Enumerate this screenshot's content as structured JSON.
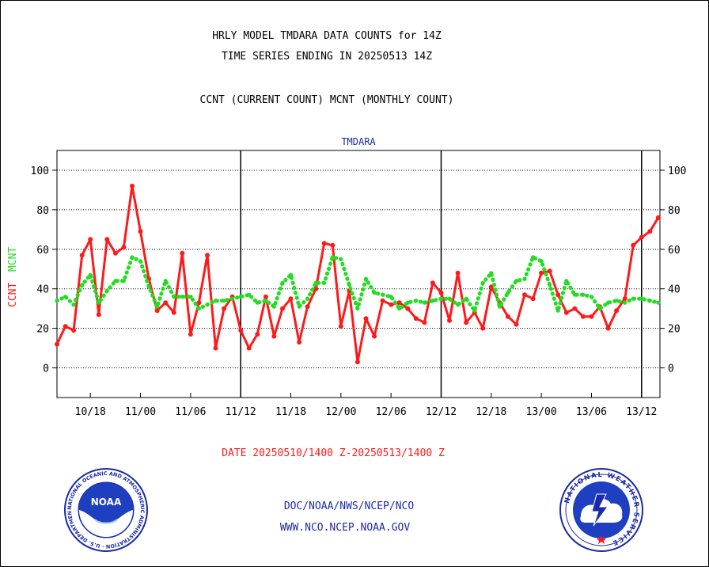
{
  "header": {
    "title_line1": "HRLY MODEL TMDARA DATA COUNTS for 14Z",
    "title_line2": "TIME SERIES ENDING IN 20250513 14Z",
    "subtitle": "CCNT (CURRENT COUNT) MCNT (MONTHLY COUNT)"
  },
  "footer": {
    "date_range": "DATE 20250510/1400 Z-20250513/1400 Z",
    "credit_line1": "DOC/NOAA/NWS/NCEP/NCO",
    "credit_line2": "WWW.NCO.NCEP.NOAA.GOV"
  },
  "logos": {
    "left": "noaa-logo",
    "left_text": "NOAA",
    "left_ring": "NATIONAL OCEANIC AND ATMOSPHERIC ADMINISTRATION · U.S. DEPARTMENT OF COMMERCE",
    "right": "nws-logo",
    "right_ring": "NATIONAL WEATHER SERVICE"
  },
  "chart_data": {
    "type": "line",
    "title": "TMDARA",
    "ylabel_left": [
      "CCNT",
      "MCNT"
    ],
    "ylim": [
      -15,
      110
    ],
    "yticks": [
      0,
      20,
      40,
      60,
      80,
      100
    ],
    "x_tick_labels": [
      "10/18",
      "11/00",
      "11/06",
      "11/12",
      "11/18",
      "12/00",
      "12/06",
      "12/12",
      "12/18",
      "13/00",
      "13/06",
      "13/12"
    ],
    "x_tick_index": [
      4,
      10,
      16,
      22,
      28,
      34,
      40,
      46,
      52,
      58,
      64,
      70
    ],
    "day_dividers_index": [
      22,
      46,
      70
    ],
    "x_range_index": [
      0,
      72.2
    ],
    "grid": true,
    "colors": {
      "ccnt": "#ff1a1a",
      "mcnt": "#22dd22",
      "title": "#1c2aa8",
      "axis": "#000000"
    },
    "series": [
      {
        "name": "CCNT",
        "style": "solid",
        "values": [
          12,
          21,
          19,
          57,
          65,
          27,
          65,
          58,
          61,
          92,
          69,
          45,
          29,
          33,
          28,
          58,
          17,
          33,
          57,
          10,
          30,
          36,
          19,
          10,
          17,
          36,
          16,
          30,
          35,
          13,
          31,
          40,
          63,
          62,
          21,
          39,
          3,
          25,
          16,
          34,
          32,
          33,
          30,
          25,
          23,
          43,
          38,
          24,
          48,
          23,
          28,
          20,
          41,
          33,
          26,
          22,
          37,
          35,
          48,
          49,
          37,
          28,
          30,
          26,
          26,
          31,
          20,
          29,
          35,
          62,
          66,
          69,
          76
        ]
      },
      {
        "name": "MCNT",
        "style": "dotted",
        "values": [
          34,
          36,
          32,
          42,
          47,
          33,
          39,
          44,
          44,
          56,
          54,
          41,
          31,
          44,
          36,
          36,
          36,
          30,
          32,
          34,
          34,
          35,
          36,
          37,
          33,
          34,
          31,
          43,
          47,
          31,
          35,
          43,
          43,
          56,
          55,
          42,
          30,
          45,
          38,
          37,
          36,
          30,
          33,
          34,
          33,
          34,
          35,
          35,
          32,
          35,
          29,
          43,
          48,
          31,
          38,
          44,
          45,
          56,
          54,
          42,
          29,
          44,
          37,
          37,
          36,
          30,
          33,
          34,
          33,
          35,
          35,
          34,
          33
        ]
      }
    ]
  }
}
